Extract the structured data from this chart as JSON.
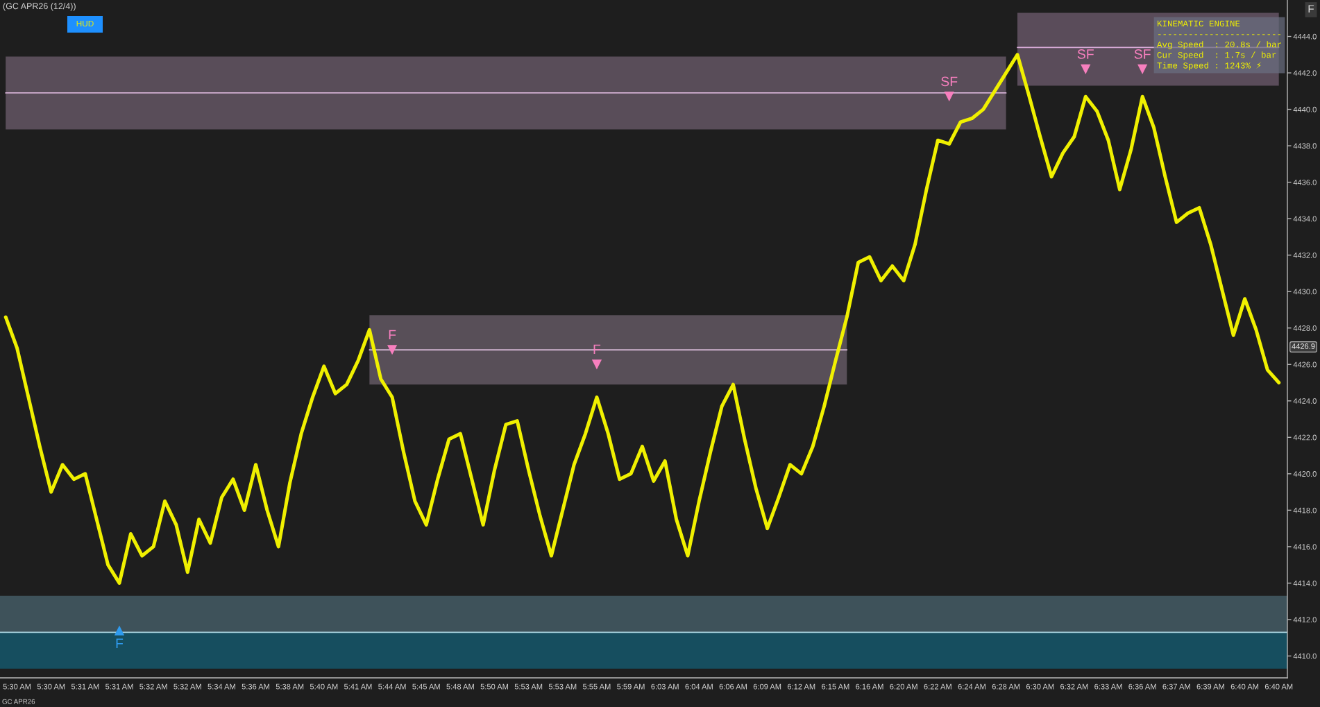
{
  "chart_data": {
    "type": "line",
    "title": "(GC APR26 (12/4))",
    "categories": [
      null,
      "5:30 AM",
      null,
      null,
      "5:30 AM",
      null,
      null,
      "5:31 AM",
      null,
      null,
      "5:31 AM",
      null,
      null,
      "5:32 AM",
      null,
      null,
      "5:32 AM",
      null,
      null,
      "5:34 AM",
      null,
      null,
      "5:36 AM",
      null,
      null,
      "5:38 AM",
      null,
      null,
      "5:40 AM",
      null,
      null,
      "5:41 AM",
      null,
      null,
      "5:44 AM",
      null,
      null,
      "5:45 AM",
      null,
      null,
      "5:48 AM",
      null,
      null,
      "5:50 AM",
      null,
      null,
      "5:53 AM",
      null,
      null,
      "5:53 AM",
      null,
      null,
      "5:55 AM",
      null,
      null,
      "5:59 AM",
      null,
      null,
      "6:03 AM",
      null,
      null,
      "6:04 AM",
      null,
      null,
      "6:06 AM",
      null,
      null,
      "6:09 AM",
      null,
      null,
      "6:12 AM",
      null,
      null,
      "6:15 AM",
      null,
      null,
      "6:16 AM",
      null,
      null,
      "6:20 AM",
      null,
      null,
      "6:22 AM",
      null,
      null,
      "6:24 AM",
      null,
      null,
      "6:28 AM",
      null,
      null,
      "6:30 AM",
      null,
      null,
      "6:32 AM",
      null,
      null,
      "6:33 AM",
      null,
      null,
      "6:36 AM",
      null,
      null,
      "6:37 AM",
      null,
      null,
      "6:39 AM",
      null,
      null,
      "6:40 AM",
      null,
      null,
      "6:40 AM"
    ],
    "series": [
      {
        "color": "#f0f000",
        "values": [
          4428.6,
          4426.9,
          4424.2,
          4421.5,
          4419.0,
          4420.5,
          4419.7,
          4420.0,
          4417.5,
          4415.0,
          4414.0,
          4416.7,
          4415.5,
          4416.0,
          4418.5,
          4417.2,
          4414.6,
          4417.5,
          4416.2,
          4418.7,
          4419.7,
          4418.0,
          4420.5,
          4418.0,
          4416.0,
          4419.5,
          4422.2,
          4424.2,
          4425.9,
          4424.4,
          4424.9,
          4426.2,
          4427.9,
          4425.2,
          4424.2,
          4421.2,
          4418.5,
          4417.2,
          4419.7,
          4421.9,
          4422.2,
          4419.7,
          4417.2,
          4420.2,
          4422.7,
          4422.9,
          4420.2,
          4417.7,
          4415.5,
          4418.0,
          4420.5,
          4422.2,
          4424.2,
          4422.2,
          4419.7,
          4420.0,
          4421.5,
          4419.6,
          4420.7,
          4417.5,
          4415.5,
          4418.5,
          4421.2,
          4423.7,
          4424.9,
          4421.9,
          4419.2,
          4417.0,
          4418.7,
          4420.5,
          4420.0,
          4421.5,
          4423.7,
          4426.2,
          4428.6,
          4431.6,
          4431.9,
          4430.6,
          4431.4,
          4430.6,
          4432.6,
          4435.6,
          4438.3,
          4438.1,
          4439.3,
          4439.5,
          4440.0,
          4441.0,
          4442.0,
          4443.0,
          4440.8,
          4438.5,
          4436.3,
          4437.6,
          4438.5,
          4440.7,
          4439.9,
          4438.3,
          4435.6,
          4437.8,
          4440.7,
          4439.0,
          4436.3,
          4433.8,
          4434.3,
          4434.6,
          4432.6,
          4430.1,
          4427.6,
          4429.6,
          4427.9,
          4425.7,
          4425.0
        ]
      },
      {
        "color": "#d2aed2",
        "values": [
          4440.9,
          4440.9,
          4440.9,
          4440.9,
          4440.9,
          4440.9,
          4440.9,
          4440.9,
          4440.9,
          4440.9,
          4440.9,
          4440.9,
          4440.9,
          4440.9,
          4440.9,
          4440.9,
          4440.9,
          4440.9,
          4440.9,
          4440.9,
          4440.9,
          4440.9,
          4440.9,
          4440.9,
          4440.9,
          4440.9,
          4440.9,
          4440.9,
          4440.9,
          4440.9,
          4440.9,
          4440.9,
          4440.9,
          4440.9,
          4440.9,
          4440.9,
          4440.9,
          4440.9,
          4440.9,
          4440.9,
          4440.9,
          4440.9,
          4440.9,
          4440.9,
          4440.9,
          4440.9,
          4440.9,
          4440.9,
          4440.9,
          4440.9,
          4440.9,
          4440.9,
          4440.9,
          4440.9,
          4440.9,
          4440.9,
          4440.9,
          4440.9,
          4440.9,
          4440.9,
          4440.9,
          4440.9,
          4440.9,
          4440.9,
          4440.9,
          4440.9,
          4440.9,
          4440.9,
          4440.9,
          4440.9,
          4440.9,
          4440.9,
          4440.9,
          4440.9,
          4440.9,
          4440.9,
          4440.9,
          4440.9,
          4440.9,
          4440.9,
          4440.9,
          4440.9,
          4440.9,
          4440.9,
          4440.9,
          4440.9,
          4440.9,
          4440.9,
          4440.9,
          null,
          null,
          null,
          null,
          null,
          null,
          null,
          null,
          null,
          null,
          null,
          null,
          null,
          null,
          null,
          null,
          null,
          null,
          null,
          null,
          null,
          null,
          null,
          null
        ],
        "lower": [
          4438.9,
          4438.9,
          4438.9,
          4438.9,
          4438.9,
          4438.9,
          4438.9,
          4438.9,
          4438.9,
          4438.9,
          4438.9,
          4438.9,
          4438.9,
          4438.9,
          4438.9,
          4438.9,
          4438.9,
          4438.9,
          4438.9,
          4438.9,
          4438.9,
          4438.9,
          4438.9,
          4438.9,
          4438.9,
          4438.9,
          4438.9,
          4438.9,
          4438.9,
          4438.9,
          4438.9,
          4438.9,
          4438.9,
          4438.9,
          4438.9,
          4438.9,
          4438.9,
          4438.9,
          4438.9,
          4438.9,
          4438.9,
          4438.9,
          4438.9,
          4438.9,
          4438.9,
          4438.9,
          4438.9,
          4438.9,
          4438.9,
          4438.9,
          4438.9,
          4438.9,
          4438.9,
          4438.9,
          4438.9,
          4438.9,
          4438.9,
          4438.9,
          4438.9,
          4438.9,
          4438.9,
          4438.9,
          4438.9,
          4438.9,
          4438.9,
          4438.9,
          4438.9,
          4438.9,
          4438.9,
          4438.9,
          4438.9,
          4438.9,
          4438.9,
          4438.9,
          4438.9,
          4438.9,
          4438.9,
          4438.9,
          4438.9,
          4438.9,
          4438.9,
          4438.9,
          4438.9,
          4438.9,
          4438.9,
          4438.9,
          4438.9,
          4438.9,
          4438.9,
          null,
          null,
          null,
          null,
          null,
          null,
          null,
          null,
          null,
          null,
          null,
          null,
          null,
          null,
          null,
          null,
          null,
          null,
          null,
          null,
          null,
          null,
          null,
          null
        ],
        "upper": [
          4442.9,
          4442.9,
          4442.9,
          4442.9,
          4442.9,
          4442.9,
          4442.9,
          4442.9,
          4442.9,
          4442.9,
          4442.9,
          4442.9,
          4442.9,
          4442.9,
          4442.9,
          4442.9,
          4442.9,
          4442.9,
          4442.9,
          4442.9,
          4442.9,
          4442.9,
          4442.9,
          4442.9,
          4442.9,
          4442.9,
          4442.9,
          4442.9,
          4442.9,
          4442.9,
          4442.9,
          4442.9,
          4442.9,
          4442.9,
          4442.9,
          4442.9,
          4442.9,
          4442.9,
          4442.9,
          4442.9,
          4442.9,
          4442.9,
          4442.9,
          4442.9,
          4442.9,
          4442.9,
          4442.9,
          4442.9,
          4442.9,
          4442.9,
          4442.9,
          4442.9,
          4442.9,
          4442.9,
          4442.9,
          4442.9,
          4442.9,
          4442.9,
          4442.9,
          4442.9,
          4442.9,
          4442.9,
          4442.9,
          4442.9,
          4442.9,
          4442.9,
          4442.9,
          4442.9,
          4442.9,
          4442.9,
          4442.9,
          4442.9,
          4442.9,
          4442.9,
          4442.9,
          4442.9,
          4442.9,
          4442.9,
          4442.9,
          4442.9,
          4442.9,
          4442.9,
          4442.9,
          4442.9,
          4442.9,
          4442.9,
          4442.9,
          4442.9,
          4442.9,
          null,
          null,
          null,
          null,
          null,
          null,
          null,
          null,
          null,
          null,
          null,
          null,
          null,
          null,
          null,
          null,
          null,
          null,
          null,
          null,
          null,
          null,
          null,
          null
        ]
      },
      {
        "color": "#ceb2ce",
        "values": [
          null,
          null,
          null,
          null,
          null,
          null,
          null,
          null,
          null,
          null,
          null,
          null,
          null,
          null,
          null,
          null,
          null,
          null,
          null,
          null,
          null,
          null,
          null,
          null,
          null,
          null,
          null,
          null,
          null,
          null,
          null,
          null,
          4426.8,
          4426.8,
          4426.8,
          4426.8,
          4426.8,
          4426.8,
          4426.8,
          4426.8,
          4426.8,
          4426.8,
          4426.8,
          4426.8,
          4426.8,
          4426.8,
          4426.8,
          4426.8,
          4426.8,
          4426.8,
          4426.8,
          4426.8,
          4426.8,
          4426.8,
          4426.8,
          4426.8,
          4426.8,
          4426.8,
          4426.8,
          4426.8,
          4426.8,
          4426.8,
          4426.8,
          4426.8,
          4426.8,
          4426.8,
          4426.8,
          4426.8,
          4426.8,
          4426.8,
          4426.8,
          4426.8,
          4426.8,
          4426.8,
          4426.8,
          null,
          null,
          null,
          null,
          null,
          null,
          null,
          null,
          null,
          null,
          null,
          null,
          null,
          null,
          null,
          null,
          null,
          null,
          null,
          null,
          null,
          null,
          null,
          null,
          null,
          null,
          null,
          null,
          null,
          null,
          null,
          null,
          null,
          null,
          null,
          null,
          null,
          null
        ],
        "lower": [
          null,
          null,
          null,
          null,
          null,
          null,
          null,
          null,
          null,
          null,
          null,
          null,
          null,
          null,
          null,
          null,
          null,
          null,
          null,
          null,
          null,
          null,
          null,
          null,
          null,
          null,
          null,
          null,
          null,
          null,
          null,
          null,
          4424.9,
          4424.9,
          4424.9,
          4424.9,
          4424.9,
          4424.9,
          4424.9,
          4424.9,
          4424.9,
          4424.9,
          4424.9,
          4424.9,
          4424.9,
          4424.9,
          4424.9,
          4424.9,
          4424.9,
          4424.9,
          4424.9,
          4424.9,
          4424.9,
          4424.9,
          4424.9,
          4424.9,
          4424.9,
          4424.9,
          4424.9,
          4424.9,
          4424.9,
          4424.9,
          4424.9,
          4424.9,
          4424.9,
          4424.9,
          4424.9,
          4424.9,
          4424.9,
          4424.9,
          4424.9,
          4424.9,
          4424.9,
          4424.9,
          4424.9,
          null,
          null,
          null,
          null,
          null,
          null,
          null,
          null,
          null,
          null,
          null,
          null,
          null,
          null,
          null,
          null,
          null,
          null,
          null,
          null,
          null,
          null,
          null,
          null,
          null,
          null,
          null,
          null,
          null,
          null,
          null,
          null,
          null,
          null,
          null,
          null,
          null,
          null
        ],
        "upper": [
          null,
          null,
          null,
          null,
          null,
          null,
          null,
          null,
          null,
          null,
          null,
          null,
          null,
          null,
          null,
          null,
          null,
          null,
          null,
          null,
          null,
          null,
          null,
          null,
          null,
          null,
          null,
          null,
          null,
          null,
          null,
          null,
          4428.7,
          4428.7,
          4428.7,
          4428.7,
          4428.7,
          4428.7,
          4428.7,
          4428.7,
          4428.7,
          4428.7,
          4428.7,
          4428.7,
          4428.7,
          4428.7,
          4428.7,
          4428.7,
          4428.7,
          4428.7,
          4428.7,
          4428.7,
          4428.7,
          4428.7,
          4428.7,
          4428.7,
          4428.7,
          4428.7,
          4428.7,
          4428.7,
          4428.7,
          4428.7,
          4428.7,
          4428.7,
          4428.7,
          4428.7,
          4428.7,
          4428.7,
          4428.7,
          4428.7,
          4428.7,
          4428.7,
          4428.7,
          4428.7,
          4428.7,
          null,
          null,
          null,
          null,
          null,
          null,
          null,
          null,
          null,
          null,
          null,
          null,
          null,
          null,
          null,
          null,
          null,
          null,
          null,
          null,
          null,
          null,
          null,
          null,
          null,
          null,
          null,
          null,
          null,
          null,
          null,
          null,
          null,
          null,
          null,
          null,
          null,
          null
        ]
      },
      {
        "color": "#d6aad6",
        "values": [
          null,
          null,
          null,
          null,
          null,
          null,
          null,
          null,
          null,
          null,
          null,
          null,
          null,
          null,
          null,
          null,
          null,
          null,
          null,
          null,
          null,
          null,
          null,
          null,
          null,
          null,
          null,
          null,
          null,
          null,
          null,
          null,
          null,
          null,
          null,
          null,
          null,
          null,
          null,
          null,
          null,
          null,
          null,
          null,
          null,
          null,
          null,
          null,
          null,
          null,
          null,
          null,
          null,
          null,
          null,
          null,
          null,
          null,
          null,
          null,
          null,
          null,
          null,
          null,
          null,
          null,
          null,
          null,
          null,
          null,
          null,
          null,
          null,
          null,
          null,
          null,
          null,
          null,
          null,
          null,
          null,
          null,
          null,
          null,
          null,
          null,
          null,
          null,
          null,
          4443.4,
          4443.4,
          4443.4,
          4443.4,
          4443.4,
          4443.4,
          4443.4,
          4443.4,
          4443.4,
          4443.4,
          4443.4,
          4443.4,
          4443.4,
          4443.4,
          4443.4,
          4443.4,
          4443.4,
          4443.4,
          4443.4,
          4443.4,
          4443.4,
          4443.4,
          4443.4,
          4443.4
        ],
        "lower": [
          null,
          null,
          null,
          null,
          null,
          null,
          null,
          null,
          null,
          null,
          null,
          null,
          null,
          null,
          null,
          null,
          null,
          null,
          null,
          null,
          null,
          null,
          null,
          null,
          null,
          null,
          null,
          null,
          null,
          null,
          null,
          null,
          null,
          null,
          null,
          null,
          null,
          null,
          null,
          null,
          null,
          null,
          null,
          null,
          null,
          null,
          null,
          null,
          null,
          null,
          null,
          null,
          null,
          null,
          null,
          null,
          null,
          null,
          null,
          null,
          null,
          null,
          null,
          null,
          null,
          null,
          null,
          null,
          null,
          null,
          null,
          null,
          null,
          null,
          null,
          null,
          null,
          null,
          null,
          null,
          null,
          null,
          null,
          null,
          null,
          null,
          null,
          null,
          null,
          4441.3,
          4441.3,
          4441.3,
          4441.3,
          4441.3,
          4441.3,
          4441.3,
          4441.3,
          4441.3,
          4441.3,
          4441.3,
          4441.3,
          4441.3,
          4441.3,
          4441.3,
          4441.3,
          4441.3,
          4441.3,
          4441.3,
          4441.3,
          4441.3,
          4441.3,
          4441.3,
          4441.3
        ],
        "upper": [
          null,
          null,
          null,
          null,
          null,
          null,
          null,
          null,
          null,
          null,
          null,
          null,
          null,
          null,
          null,
          null,
          null,
          null,
          null,
          null,
          null,
          null,
          null,
          null,
          null,
          null,
          null,
          null,
          null,
          null,
          null,
          null,
          null,
          null,
          null,
          null,
          null,
          null,
          null,
          null,
          null,
          null,
          null,
          null,
          null,
          null,
          null,
          null,
          null,
          null,
          null,
          null,
          null,
          null,
          null,
          null,
          null,
          null,
          null,
          null,
          null,
          null,
          null,
          null,
          null,
          null,
          null,
          null,
          null,
          null,
          null,
          null,
          null,
          null,
          null,
          null,
          null,
          null,
          null,
          null,
          null,
          null,
          null,
          null,
          null,
          null,
          null,
          null,
          null,
          4445.3,
          4445.3,
          4445.3,
          4445.3,
          4445.3,
          4445.3,
          4445.3,
          4445.3,
          4445.3,
          4445.3,
          4445.3,
          4445.3,
          4445.3,
          4445.3,
          4445.3,
          4445.3,
          4445.3,
          4445.3,
          4445.3,
          4445.3,
          4445.3,
          4445.3,
          4445.3,
          4445.3
        ]
      },
      {
        "type": "scatter",
        "color": "#f77fbe",
        "marker": "triangle",
        "values": [
          null,
          null,
          null,
          null,
          null,
          null,
          null,
          null,
          null,
          null,
          null,
          null,
          null,
          null,
          null,
          null,
          null,
          null,
          null,
          null,
          null,
          null,
          null,
          null,
          null,
          null,
          null,
          null,
          null,
          null,
          null,
          null,
          null,
          null,
          4426.8,
          null,
          null,
          null,
          null,
          null,
          null,
          null,
          null,
          null,
          null,
          null,
          null,
          null,
          null,
          null,
          null,
          null,
          4426.0,
          null,
          null,
          null,
          null,
          null,
          null,
          null,
          null,
          null,
          null,
          null,
          null,
          null,
          null,
          null,
          null,
          null,
          null,
          null,
          null,
          null,
          null,
          null,
          null,
          null,
          null,
          null,
          null,
          null,
          null,
          4440.7,
          null,
          null,
          null,
          null,
          null,
          null,
          null,
          null,
          null,
          null,
          null,
          4442.2,
          null,
          null,
          null,
          null,
          4442.2,
          null,
          null,
          null,
          null,
          null,
          null,
          null,
          null,
          null,
          null,
          null,
          null
        ],
        "value_labels": [
          null,
          null,
          null,
          null,
          null,
          null,
          null,
          null,
          null,
          null,
          null,
          null,
          null,
          null,
          null,
          null,
          null,
          null,
          null,
          null,
          null,
          null,
          null,
          null,
          null,
          null,
          null,
          null,
          null,
          null,
          null,
          null,
          null,
          null,
          "F",
          null,
          null,
          null,
          null,
          null,
          null,
          null,
          null,
          null,
          null,
          null,
          null,
          null,
          null,
          null,
          null,
          null,
          "F",
          null,
          null,
          null,
          null,
          null,
          null,
          null,
          null,
          null,
          null,
          null,
          null,
          null,
          null,
          null,
          null,
          null,
          null,
          null,
          null,
          null,
          null,
          null,
          null,
          null,
          null,
          null,
          null,
          null,
          null,
          "SF",
          null,
          null,
          null,
          null,
          null,
          null,
          null,
          null,
          null,
          null,
          null,
          "SF",
          null,
          null,
          null,
          null,
          "SF",
          null,
          null,
          null,
          null,
          null,
          null,
          null,
          null,
          null,
          null,
          null,
          null
        ]
      },
      {
        "type": "scatter",
        "color": "#2f9bef",
        "marker": "triangle",
        "values": [
          null,
          null,
          null,
          null,
          null,
          null,
          null,
          null,
          null,
          null,
          4411.4,
          null,
          null,
          null,
          null,
          null,
          null,
          null,
          null,
          null,
          null,
          null,
          null,
          null,
          null,
          null,
          null,
          null,
          null,
          null,
          null,
          null,
          null,
          null,
          null,
          null,
          null,
          null,
          null,
          null,
          null,
          null,
          null,
          null,
          null,
          null,
          null,
          null,
          null,
          null,
          null,
          null,
          null,
          null,
          null,
          null,
          null,
          null,
          null,
          null,
          null,
          null,
          null,
          null,
          null,
          null,
          null,
          null,
          null,
          null,
          null,
          null,
          null,
          null,
          null,
          null,
          null,
          null,
          null,
          null,
          null,
          null,
          null,
          null,
          null,
          null,
          null,
          null,
          null,
          null,
          null,
          null,
          null,
          null,
          null,
          null,
          null,
          null,
          null,
          null,
          null,
          null,
          null,
          null,
          null,
          null,
          null,
          null,
          null,
          null,
          null,
          null,
          null
        ],
        "value_labels": [
          null,
          null,
          null,
          null,
          null,
          null,
          null,
          null,
          null,
          null,
          "F",
          null,
          null,
          null,
          null,
          null,
          null,
          null,
          null,
          null,
          null,
          null,
          null,
          null,
          null,
          null,
          null,
          null,
          null,
          null,
          null,
          null,
          null,
          null,
          null,
          null,
          null,
          null,
          null,
          null,
          null,
          null,
          null,
          null,
          null,
          null,
          null,
          null,
          null,
          null,
          null,
          null,
          null,
          null,
          null,
          null,
          null,
          null,
          null,
          null,
          null,
          null,
          null,
          null,
          null,
          null,
          null,
          null,
          null,
          null,
          null,
          null,
          null,
          null,
          null,
          null,
          null,
          null,
          null,
          null,
          null,
          null,
          null,
          null,
          null,
          null,
          null,
          null,
          null,
          null,
          null,
          null,
          null,
          null,
          null,
          null,
          null,
          null,
          null,
          null,
          null,
          null,
          null,
          null,
          null,
          null,
          null,
          null,
          null,
          null,
          null,
          null,
          null
        ]
      }
    ],
    "ylim": [
      4408.8,
      4446.0
    ],
    "yticks": [
      {
        "value": 4410,
        "label": "4410.0"
      },
      {
        "value": 4412,
        "label": "4412.0"
      },
      {
        "value": 4414,
        "label": "4414.0"
      },
      {
        "value": 4416,
        "label": "4416.0"
      },
      {
        "value": 4418,
        "label": "4418.0"
      },
      {
        "value": 4420,
        "label": "4420.0"
      },
      {
        "value": 4422,
        "label": "4422.0"
      },
      {
        "value": 4424,
        "label": "4424.0"
      },
      {
        "value": 4426,
        "label": "4426.0"
      },
      {
        "value": 4428,
        "label": "4428.0"
      },
      {
        "value": 4430,
        "label": "4430.0"
      },
      {
        "value": 4432,
        "label": "4432.0"
      },
      {
        "value": 4434,
        "label": "4434.0"
      },
      {
        "value": 4436,
        "label": "4436.0"
      },
      {
        "value": 4438,
        "label": "4438.0"
      },
      {
        "value": 4440,
        "label": "4440.0"
      },
      {
        "value": 4442,
        "label": "4442.0"
      },
      {
        "value": 4444,
        "label": "4444.0"
      }
    ],
    "bands": [
      {
        "axis": "y",
        "from": 4411.3,
        "to": 4413.3,
        "color": "#3e525a"
      },
      {
        "axis": "y",
        "from": 4409.3,
        "to": 4411.3,
        "color": "#164e5f"
      }
    ],
    "ref_lines": [
      {
        "axis": "y",
        "value": 4411.3,
        "color": "#a9d3df"
      }
    ],
    "annotations": [
      "HUD",
      "KINEMATIC ENGINE\n------------------------\nAvg Speed  : 20.8s / bar\nCur Speed  : 1.7s / bar\nTime Speed : 1243% ⚡",
      "GC APR26",
      "F",
      "4426.9"
    ]
  }
}
